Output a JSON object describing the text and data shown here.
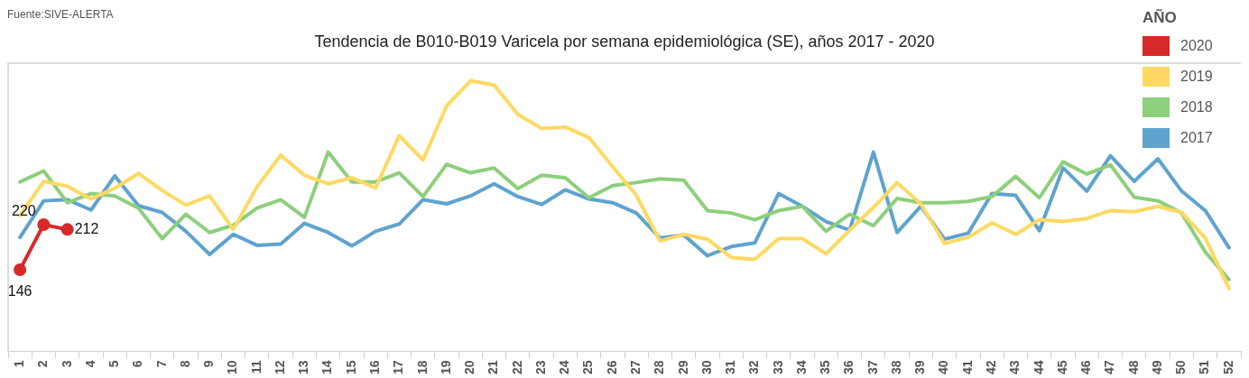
{
  "chart_data": {
    "type": "line",
    "title": "Tendencia de B010-B019 Varicela por semana epidemiológica (SE), años 2017 - 2020",
    "annotations": [
      "Fuente:SIVE-ALERTA"
    ],
    "legend_title": "AÑO",
    "legend": "top right",
    "categories": [
      "1",
      "2",
      "3",
      "4",
      "5",
      "6",
      "7",
      "8",
      "9",
      "10",
      "11",
      "12",
      "13",
      "14",
      "15",
      "16",
      "17",
      "18",
      "19",
      "20",
      "21",
      "22",
      "23",
      "24",
      "25",
      "26",
      "27",
      "28",
      "29",
      "30",
      "31",
      "32",
      "33",
      "34",
      "35",
      "36",
      "37",
      "38",
      "39",
      "40",
      "41",
      "42",
      "43",
      "44",
      "45",
      "46",
      "47",
      "48",
      "49",
      "50",
      "51",
      "52"
    ],
    "ylim": [
      12,
      485
    ],
    "tick_labels": "x",
    "grid": false,
    "marker": "none",
    "line_style": "solid",
    "series": [
      {
        "name": "2020",
        "color": "#d62a2a",
        "marker": "circle",
        "values": [
          146,
          220,
          212,
          null,
          null,
          null,
          null,
          null,
          null,
          null,
          null,
          null,
          null,
          null,
          null,
          null,
          null,
          null,
          null,
          null,
          null,
          null,
          null,
          null,
          null,
          null,
          null,
          null,
          null,
          null,
          null,
          null,
          null,
          null,
          null,
          null,
          null,
          null,
          null,
          null,
          null,
          null,
          null,
          null,
          null,
          null,
          null,
          null,
          null,
          null,
          null,
          null
        ],
        "value_labels": [
          "146",
          "220",
          "212",
          null,
          null,
          null,
          null,
          null,
          null,
          null,
          null,
          null,
          null,
          null,
          null,
          null,
          null,
          null,
          null,
          null,
          null,
          null,
          null,
          null,
          null,
          null,
          null,
          null,
          null,
          null,
          null,
          null,
          null,
          null,
          null,
          null,
          null,
          null,
          null,
          null,
          null,
          null,
          null,
          null,
          null,
          null,
          null,
          null,
          null,
          null,
          null,
          null
        ]
      },
      {
        "name": "2019",
        "color": "#fed962",
        "values": [
          235,
          291,
          283,
          262,
          280,
          304,
          276,
          252,
          267,
          212,
          282,
          334,
          301,
          287,
          297,
          280,
          366,
          326,
          415,
          456,
          449,
          401,
          378,
          380,
          363,
          315,
          268,
          193,
          204,
          196,
          166,
          163,
          197,
          197,
          172,
          211,
          248,
          289,
          254,
          189,
          199,
          223,
          204,
          228,
          225,
          230,
          243,
          241,
          250,
          240,
          198,
          115
        ]
      },
      {
        "name": "2018",
        "color": "#8dcf7b",
        "values": [
          290,
          308,
          256,
          271,
          267,
          247,
          197,
          237,
          207,
          219,
          247,
          261,
          232,
          339,
          290,
          290,
          305,
          266,
          319,
          305,
          313,
          279,
          301,
          297,
          264,
          284,
          289,
          295,
          293,
          243,
          239,
          228,
          243,
          250,
          209,
          237,
          218,
          263,
          256,
          256,
          258,
          266,
          299,
          264,
          323,
          303,
          318,
          265,
          259,
          239,
          175,
          130
        ]
      },
      {
        "name": "2017",
        "color": "#5fa3cf",
        "values": [
          199,
          259,
          261,
          244,
          300,
          251,
          240,
          209,
          171,
          204,
          186,
          188,
          222,
          207,
          185,
          209,
          221,
          261,
          254,
          267,
          287,
          266,
          253,
          277,
          262,
          256,
          239,
          198,
          203,
          169,
          184,
          190,
          271,
          250,
          225,
          211,
          339,
          207,
          250,
          196,
          206,
          271,
          268,
          210,
          313,
          275,
          333,
          291,
          328,
          275,
          243,
          182
        ]
      }
    ]
  }
}
